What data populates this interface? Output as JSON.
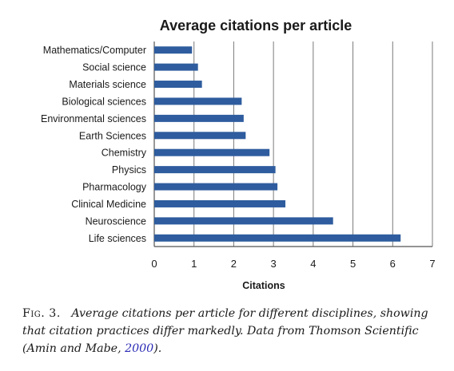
{
  "chart_data": {
    "type": "bar",
    "orientation": "horizontal",
    "title": "Average citations per article",
    "xlabel": "Citations",
    "ylabel": "",
    "categories": [
      "Mathematics/Computer",
      "Social science",
      "Materials science",
      "Biological sciences",
      "Environmental sciences",
      "Earth Sciences",
      "Chemistry",
      "Physics",
      "Pharmacology",
      "Clinical Medicine",
      "Neuroscience",
      "Life sciences"
    ],
    "values": [
      0.95,
      1.1,
      1.2,
      2.2,
      2.25,
      2.3,
      2.9,
      3.05,
      3.1,
      3.3,
      4.5,
      6.2
    ],
    "xlim": [
      0,
      7
    ],
    "xticks": [
      0,
      1,
      2,
      3,
      4,
      5,
      6,
      7
    ],
    "grid": "vertical",
    "legend": "none",
    "bar_color": "#2e5c9e"
  },
  "caption": {
    "label": "Fig. 3.",
    "text": "Average citations per article for different disciplines, showing that citation practices differ markedly. Data from Thomson Scientific (Amin and Mabe, ",
    "link": "2000",
    "end": ")."
  }
}
